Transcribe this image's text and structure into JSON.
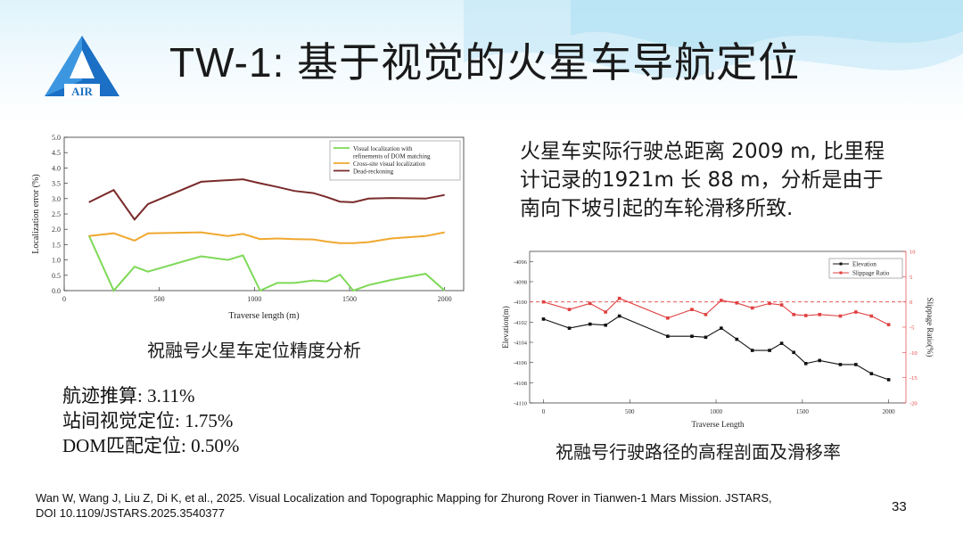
{
  "slide": {
    "title": "TW-1: 基于视觉的火星车导航定位",
    "logo_text": "AIR",
    "page_number": "33",
    "colors": {
      "accent_blue": "#1b6fc4",
      "logo_light": "#3d97e0"
    }
  },
  "summary_text": {
    "line1": "火星车实际行驶总距离 2009 m, 比里程",
    "line2": "计记录的1921m 长 88 m，分析是由于",
    "line3": "南向下坡引起的车轮滑移所致."
  },
  "stats": {
    "dead_reckoning": "航迹推算: 3.11%",
    "cross_site": "站间视觉定位: 1.75%",
    "dom": "DOM匹配定位: 0.50%"
  },
  "captions": {
    "chart1": "祝融号火星车定位精度分析",
    "chart2": "祝融号行驶路径的高程剖面及滑移率"
  },
  "reference": {
    "line1": "Wan W, Wang J, Liu Z, Di K, et al., 2025. Visual Localization and Topographic Mapping for Zhurong Rover in Tianwen-1 Mars Mission. JSTARS,",
    "line2": "DOI 10.1109/JSTARS.2025.3540377"
  },
  "chart_data": [
    {
      "type": "line",
      "xlabel": "Traverse length (m)",
      "ylabel": "Localization error (%)",
      "xlim": [
        0,
        2100
      ],
      "ylim": [
        0,
        5.0
      ],
      "xticks": [
        0,
        500,
        1000,
        1500,
        2000
      ],
      "yticks": [
        0.0,
        0.5,
        1.0,
        1.5,
        2.0,
        2.5,
        3.0,
        3.5,
        4.0,
        4.5,
        5.0
      ],
      "legend": "top-right",
      "series": [
        {
          "name": "Visual localization with refinements of DOM matching",
          "legend_lines": [
            "Visual localization with",
            "refinements of DOM matching"
          ],
          "color": "#7ed957",
          "x": [
            130,
            260,
            370,
            440,
            720,
            860,
            940,
            1030,
            1120,
            1210,
            1310,
            1380,
            1450,
            1520,
            1600,
            1720,
            1900,
            2000
          ],
          "y": [
            1.8,
            0.0,
            0.78,
            0.62,
            1.12,
            1.0,
            1.15,
            0.0,
            0.25,
            0.25,
            0.33,
            0.3,
            0.52,
            0.0,
            0.18,
            0.35,
            0.55,
            0.0
          ]
        },
        {
          "name": "Cross-site visual localization",
          "legend_lines": [
            "Cross-site visual localization"
          ],
          "color": "#f0a830",
          "x": [
            130,
            260,
            370,
            440,
            720,
            860,
            940,
            1030,
            1120,
            1210,
            1310,
            1380,
            1450,
            1520,
            1600,
            1720,
            1900,
            2000
          ],
          "y": [
            1.78,
            1.87,
            1.63,
            1.87,
            1.9,
            1.78,
            1.85,
            1.68,
            1.7,
            1.68,
            1.67,
            1.6,
            1.55,
            1.55,
            1.58,
            1.7,
            1.78,
            1.9
          ]
        },
        {
          "name": "Dead-reckoning",
          "legend_lines": [
            "Dead-reckoning"
          ],
          "color": "#7a2a2a",
          "x": [
            130,
            260,
            370,
            440,
            720,
            940,
            1030,
            1120,
            1210,
            1310,
            1380,
            1450,
            1520,
            1600,
            1720,
            1900,
            2000
          ],
          "y": [
            2.88,
            3.28,
            2.32,
            2.82,
            3.55,
            3.63,
            3.5,
            3.38,
            3.25,
            3.18,
            3.05,
            2.9,
            2.88,
            3.0,
            3.02,
            3.0,
            3.12
          ]
        }
      ]
    },
    {
      "type": "line",
      "xlabel": "Traverse Length",
      "ylabel": "Elevation(m)",
      "ylabel_right": "Slippage Ratio(%)",
      "xlim": [
        -80,
        2100
      ],
      "xticks": [
        0,
        500,
        1000,
        1500,
        2000
      ],
      "ylim": [
        -4110,
        -4095
      ],
      "yticks": [
        -4110,
        -4108,
        -4106,
        -4104,
        -4102,
        -4100,
        -4098,
        -4096
      ],
      "ylim_right": [
        -20,
        10
      ],
      "yticks_right": [
        -20,
        -15,
        -10,
        -5,
        0,
        5,
        10
      ],
      "legend": "top-right",
      "reference_line_right": 0,
      "series": [
        {
          "name": "Elevation",
          "axis": "left",
          "color": "#111111",
          "x": [
            0,
            150,
            270,
            360,
            440,
            720,
            860,
            940,
            1030,
            1120,
            1210,
            1310,
            1380,
            1450,
            1520,
            1600,
            1720,
            1810,
            1900,
            2000
          ],
          "y": [
            -4101.7,
            -4102.6,
            -4102.2,
            -4102.3,
            -4101.4,
            -4103.4,
            -4103.4,
            -4103.5,
            -4102.6,
            -4103.7,
            -4104.8,
            -4104.8,
            -4104.1,
            -4105.0,
            -4106.1,
            -4105.8,
            -4106.2,
            -4106.2,
            -4107.1,
            -4107.7
          ]
        },
        {
          "name": "Slippage Ratio",
          "axis": "right",
          "color": "#e04040",
          "x": [
            0,
            150,
            270,
            360,
            440,
            720,
            860,
            940,
            1030,
            1120,
            1210,
            1310,
            1380,
            1450,
            1520,
            1600,
            1720,
            1810,
            1900,
            2000
          ],
          "y": [
            0.0,
            -1.5,
            -0.3,
            -2.0,
            0.7,
            -3.2,
            -1.5,
            -2.5,
            0.3,
            -0.2,
            -1.2,
            -0.3,
            -0.6,
            -2.5,
            -2.7,
            -2.5,
            -2.8,
            -2.0,
            -2.8,
            -4.5
          ]
        }
      ]
    }
  ]
}
